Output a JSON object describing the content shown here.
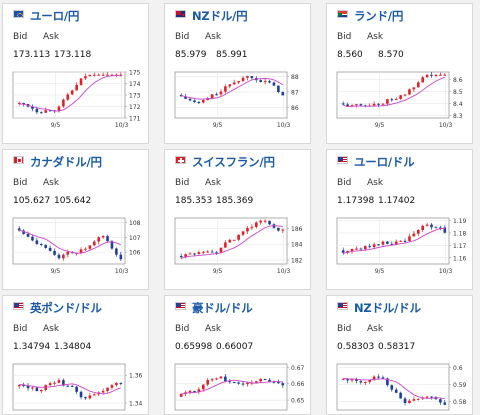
{
  "labels": {
    "bid": "Bid",
    "ask": "Ask"
  },
  "colors": {
    "title": "#1a5aa8",
    "up": "#e21f26",
    "down": "#1c3f9c",
    "ma": "#cc44cc"
  },
  "cards": [
    {
      "name": "ユーロ/円",
      "flag": "eu-flag-icon",
      "bid": "173.113",
      "ask": "173.118",
      "yticks": [
        "175",
        "174",
        "173",
        "172",
        "171"
      ],
      "xticks": [
        "9/5",
        "10/3"
      ],
      "range": [
        171,
        175
      ],
      "start": 172.3,
      "trend": [
        -0.5,
        0.8,
        1.9,
        1.2,
        0.9
      ],
      "ma_offset": -0.5
    },
    {
      "name": "NZドル/円",
      "flag": "nz-flag-icon",
      "bid": "85.979",
      "ask": "85.991",
      "yticks": [
        "88",
        "87",
        "86"
      ],
      "xticks": [
        "9/5",
        "10/3"
      ],
      "range": [
        85.3,
        88.3
      ],
      "start": 86.8,
      "trend": [
        -0.6,
        0.6,
        0.9,
        0.2,
        -1.2
      ],
      "ma_offset": 0.4
    },
    {
      "name": "ランド/円",
      "flag": "za-flag-icon",
      "bid": "8.560",
      "ask": "8.570",
      "yticks": [
        "8.6",
        "8.5",
        "8.4",
        "8.3"
      ],
      "xticks": [
        "9/5",
        "10/3"
      ],
      "range": [
        8.28,
        8.66
      ],
      "start": 8.4,
      "trend": [
        -0.03,
        0.05,
        0.08,
        0.1,
        0.02
      ],
      "ma_offset": -0.05
    },
    {
      "name": "カナダドル/円",
      "flag": "ca-flag-icon",
      "bid": "105.627",
      "ask": "105.642",
      "yticks": [
        "108",
        "107",
        "106"
      ],
      "xticks": [
        "9/5",
        "10/3"
      ],
      "range": [
        105.2,
        108.3
      ],
      "start": 107.6,
      "trend": [
        -0.4,
        -0.6,
        0.3,
        0.6,
        -2.0
      ],
      "ma_offset": 0.3
    },
    {
      "name": "スイスフラン/円",
      "flag": "ch-flag-icon",
      "bid": "185.353",
      "ask": "185.369",
      "yticks": [
        "186",
        "184",
        "182"
      ],
      "xticks": [
        "9/5",
        "10/3"
      ],
      "range": [
        181.5,
        187.3
      ],
      "start": 182.5,
      "trend": [
        0.3,
        1.2,
        1.5,
        1.8,
        -0.8
      ],
      "ma_offset": -1.0
    },
    {
      "name": "ユーロ/ドル",
      "flag": "eu-us-flag-icon",
      "bid": "1.17398",
      "ask": "1.17402",
      "yticks": [
        "1.19",
        "1.18",
        "1.17",
        "1.16"
      ],
      "xticks": [
        "9/5",
        "10/3"
      ],
      "range": [
        1.155,
        1.192
      ],
      "start": 1.166,
      "trend": [
        0.0,
        0.006,
        0.002,
        0.01,
        -0.01
      ],
      "ma_offset": -0.003
    },
    {
      "name": "英ポンド/ドル",
      "flag": "gb-us-flag-icon",
      "bid": "1.34794",
      "ask": "1.34804",
      "yticks": [
        "1.36",
        "1.34"
      ],
      "xticks": [],
      "range": [
        1.335,
        1.368
      ],
      "start": 1.352,
      "trend": [
        -0.004,
        0.008,
        -0.01,
        0.002,
        0.004
      ],
      "ma_offset": 0.002
    },
    {
      "name": "豪ドル/ドル",
      "flag": "au-us-flag-icon",
      "bid": "0.65998",
      "ask": "0.66007",
      "yticks": [
        "0.67",
        "0.66",
        "0.65"
      ],
      "xticks": [],
      "range": [
        0.644,
        0.672
      ],
      "start": 0.652,
      "trend": [
        0.004,
        0.008,
        -0.006,
        0.004,
        -0.002
      ],
      "ma_offset": -0.001
    },
    {
      "name": "NZドル/ドル",
      "flag": "nz-us-flag-icon",
      "bid": "0.58303",
      "ask": "0.58317",
      "yticks": [
        "0.6",
        "0.59",
        "0.58"
      ],
      "xticks": [],
      "range": [
        0.575,
        0.602
      ],
      "start": 0.593,
      "trend": [
        -0.002,
        0.003,
        -0.012,
        0.002,
        -0.004
      ],
      "ma_offset": 0.003
    }
  ]
}
